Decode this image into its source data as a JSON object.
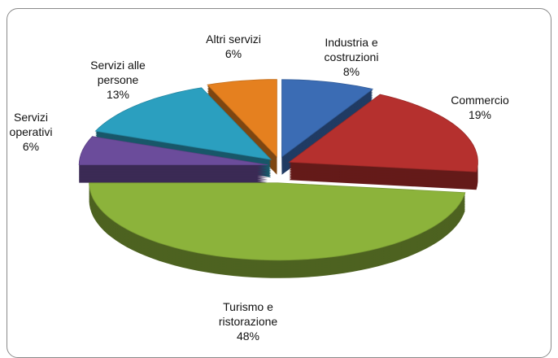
{
  "chart_data": {
    "type": "pie",
    "categories": [
      "Industria e costruzioni",
      "Commercio",
      "Turismo e ristorazione",
      "Servizi operativi",
      "Servizi alle persone",
      "Altri servizi"
    ],
    "values": [
      8,
      19,
      48,
      6,
      13,
      6
    ],
    "value_labels": [
      "8%",
      "19%",
      "48%",
      "6%",
      "13%",
      "6%"
    ],
    "colors": [
      "#3b6cb4",
      "#b5302e",
      "#8cb33b",
      "#6b4c9b",
      "#2b9fbf",
      "#e5801f"
    ]
  }
}
